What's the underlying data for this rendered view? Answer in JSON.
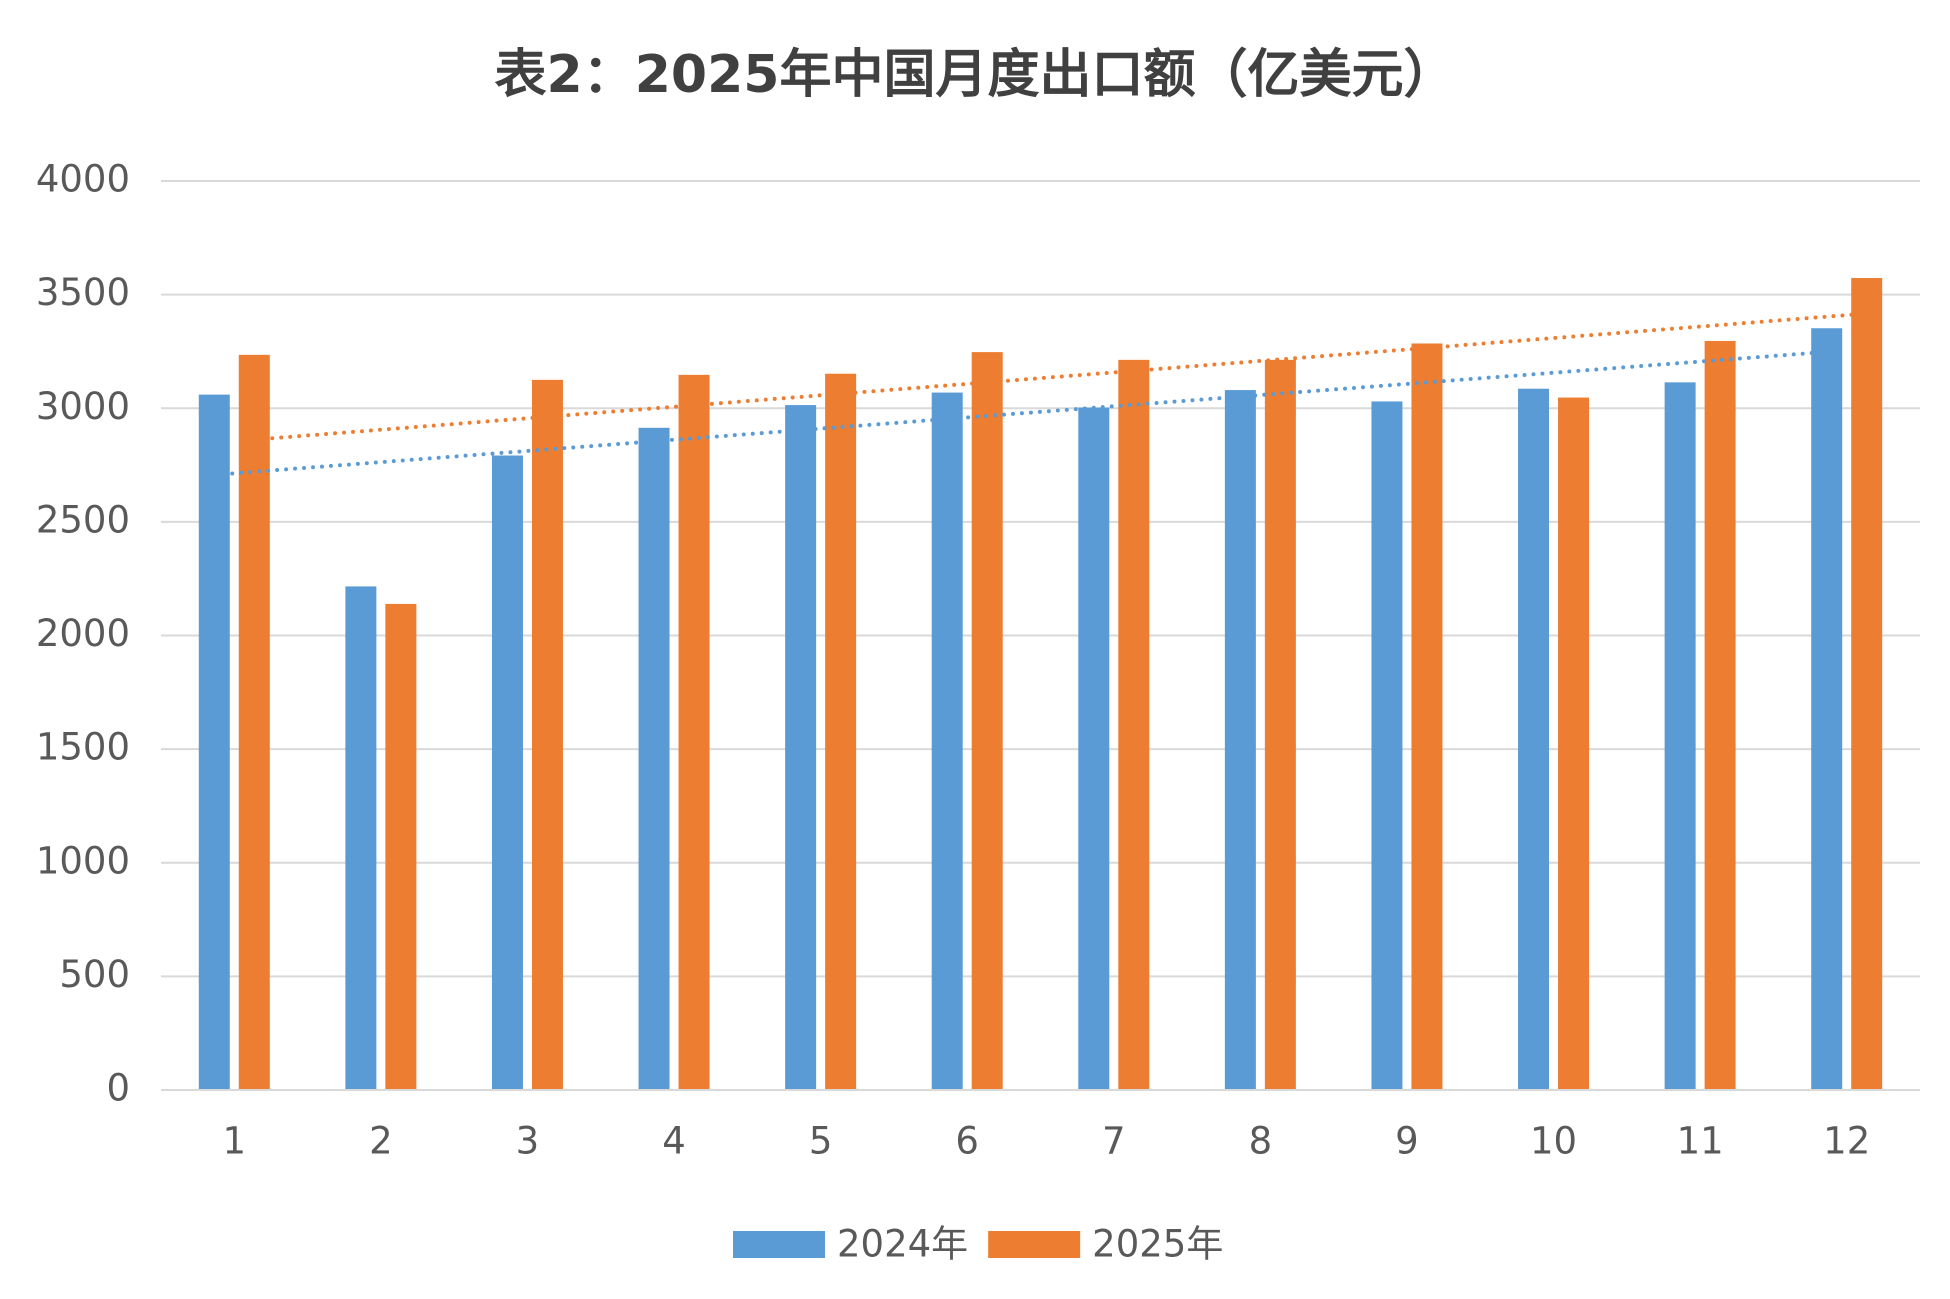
{
  "chart_data": {
    "type": "bar",
    "title": "表2：2025年中国月度出口额（亿美元）",
    "categories": [
      "1",
      "2",
      "3",
      "4",
      "5",
      "6",
      "7",
      "8",
      "9",
      "10",
      "11",
      "12"
    ],
    "series": [
      {
        "name": "2024年",
        "color": "#5b9bd5",
        "values": [
          3060,
          2216,
          2792,
          2914,
          3014,
          3069,
          3003,
          3080,
          3030,
          3086,
          3114,
          3352
        ]
      },
      {
        "name": "2025年",
        "color": "#ed7d31",
        "values": [
          3235,
          2139,
          3125,
          3147,
          3152,
          3247,
          3213,
          3213,
          3285,
          3047,
          3296,
          3573
        ]
      }
    ],
    "ylim": [
      0,
      4000
    ],
    "yticks": [
      0,
      500,
      1000,
      1500,
      2000,
      2500,
      3000,
      3500,
      4000
    ],
    "grid": true,
    "trendline": true,
    "legend": "bottom"
  }
}
